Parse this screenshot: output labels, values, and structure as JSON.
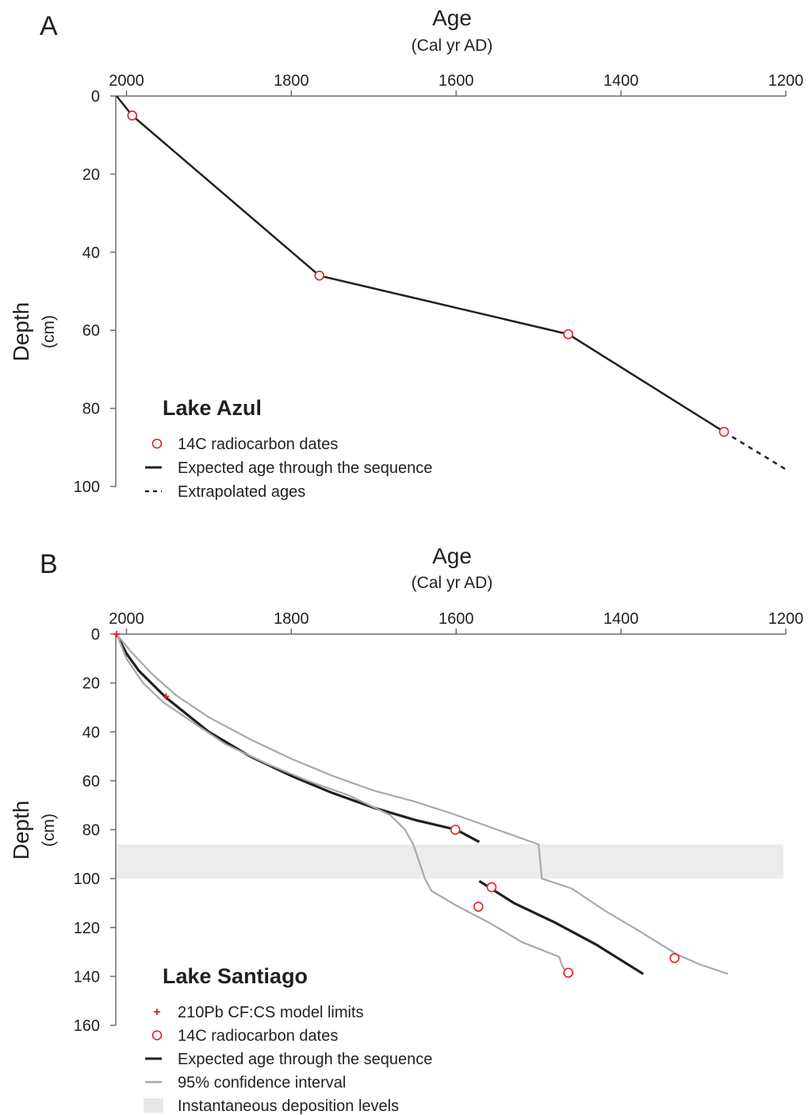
{
  "chart_data": [
    {
      "panel": "A",
      "type": "line",
      "title": "Lake Azul",
      "xlabel": "Age",
      "xlabel_sub": "(Cal yr AD)",
      "ylabel": "Depth",
      "ylabel_sub": "(cm)",
      "x_inverted": true,
      "y_inverted": true,
      "xlim": [
        2013,
        1200
      ],
      "ylim": [
        0,
        100
      ],
      "x_ticks": [
        2000,
        1800,
        1600,
        1400,
        1200
      ],
      "y_ticks": [
        0,
        20,
        40,
        60,
        80,
        100
      ],
      "series": [
        {
          "name": "14C radiocarbon dates",
          "kind": "markers",
          "color": "#e31e24",
          "points": [
            [
              1993,
              5
            ],
            [
              1766,
              46
            ],
            [
              1464,
              61
            ],
            [
              1275,
              86
            ]
          ]
        },
        {
          "name": "Expected age through the sequence",
          "kind": "solid",
          "color": "#231f20",
          "points": [
            [
              2012,
              0
            ],
            [
              1993,
              5
            ],
            [
              1766,
              46
            ],
            [
              1464,
              61
            ],
            [
              1275,
              86
            ]
          ]
        },
        {
          "name": "Extrapolated ages",
          "kind": "dashed",
          "color": "#231f20",
          "points": [
            [
              1275,
              86
            ],
            [
              1197,
              96
            ]
          ]
        }
      ],
      "legend": [
        {
          "label": "14C radiocarbon dates",
          "symbol": "circle"
        },
        {
          "label": "Expected age through the sequence",
          "symbol": "solid"
        },
        {
          "label": "Extrapolated ages",
          "symbol": "dashed"
        }
      ]
    },
    {
      "panel": "B",
      "type": "line",
      "title": "Lake Santiago",
      "xlabel": "Age",
      "xlabel_sub": "(Cal yr AD)",
      "ylabel": "Depth",
      "ylabel_sub": "(cm)",
      "x_inverted": true,
      "y_inverted": true,
      "xlim": [
        2013,
        1200
      ],
      "ylim": [
        0,
        160
      ],
      "x_ticks": [
        2000,
        1800,
        1600,
        1400,
        1200
      ],
      "y_ticks": [
        0,
        20,
        40,
        60,
        80,
        100,
        120,
        140,
        160
      ],
      "bands": [
        {
          "name": "Instantaneous deposition levels",
          "color": "#ececec",
          "x": [
            2013,
            1203
          ],
          "y": [
            86,
            100
          ]
        }
      ],
      "series": [
        {
          "name": "210Pb CF:CS model limits",
          "kind": "plus",
          "color": "#e31e24",
          "points": [
            [
              2012,
              0
            ],
            [
              1952,
              25.5
            ]
          ]
        },
        {
          "name": "14C radiocarbon dates",
          "kind": "markers",
          "color": "#e31e24",
          "points": [
            [
              1601,
              80
            ],
            [
              1557,
              103.5
            ],
            [
              1573,
              111.5
            ],
            [
              1335,
              132.5
            ],
            [
              1464,
              138.5
            ]
          ]
        },
        {
          "name": "Expected age through the sequence",
          "kind": "solid",
          "color": "#231f20",
          "segments": [
            [
              [
                2012,
                0
              ],
              [
                2000,
                8
              ],
              [
                1985,
                15
              ],
              [
                1952,
                26
              ],
              [
                1900,
                40
              ],
              [
                1850,
                50
              ],
              [
                1800,
                58
              ],
              [
                1750,
                65
              ],
              [
                1700,
                71
              ],
              [
                1650,
                76
              ],
              [
                1600,
                80
              ],
              [
                1572,
                85
              ]
            ],
            [
              [
                1572,
                101
              ],
              [
                1530,
                110
              ],
              [
                1480,
                118
              ],
              [
                1430,
                127
              ],
              [
                1373,
                139
              ]
            ]
          ]
        },
        {
          "name": "95% confidence interval",
          "kind": "solid-light",
          "color": "#a7a9ac",
          "segments": [
            [
              [
                2012,
                0
              ],
              [
                1995,
                7
              ],
              [
                1970,
                16
              ],
              [
                1940,
                25
              ],
              [
                1900,
                34
              ],
              [
                1850,
                43
              ],
              [
                1800,
                51
              ],
              [
                1750,
                58
              ],
              [
                1700,
                64
              ],
              [
                1650,
                68.5
              ],
              [
                1600,
                74
              ],
              [
                1550,
                80
              ],
              [
                1500,
                86
              ],
              [
                1496,
                100
              ],
              [
                1460,
                104
              ],
              [
                1420,
                113
              ],
              [
                1380,
                121
              ],
              [
                1332,
                131
              ],
              [
                1305,
                135
              ],
              [
                1270,
                139
              ]
            ],
            [
              [
                2012,
                0
              ],
              [
                2000,
                10
              ],
              [
                1980,
                20
              ],
              [
                1955,
                28
              ],
              [
                1920,
                36
              ],
              [
                1880,
                45
              ],
              [
                1830,
                53
              ],
              [
                1780,
                60
              ],
              [
                1730,
                66
              ],
              [
                1680,
                74
              ],
              [
                1662,
                80
              ],
              [
                1652,
                86
              ],
              [
                1638,
                100
              ],
              [
                1630,
                105
              ],
              [
                1600,
                111
              ],
              [
                1560,
                118
              ],
              [
                1520,
                126
              ],
              [
                1475,
                132
              ],
              [
                1472,
                135
              ],
              [
                1466,
                139
              ]
            ]
          ]
        }
      ],
      "legend": [
        {
          "label": "210Pb CF:CS model limits",
          "symbol": "plus"
        },
        {
          "label": "14C radiocarbon dates",
          "symbol": "circle"
        },
        {
          "label": "Expected age through the sequence",
          "symbol": "solid"
        },
        {
          "label": "95% confidence interval",
          "symbol": "solid-light"
        },
        {
          "label": "Instantaneous deposition levels",
          "symbol": "band"
        }
      ]
    }
  ]
}
